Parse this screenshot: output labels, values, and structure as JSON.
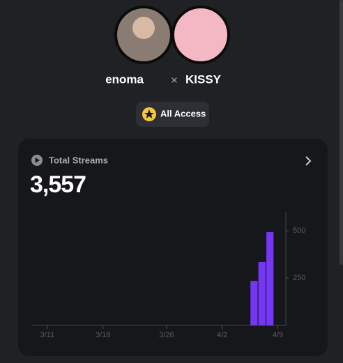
{
  "header": {
    "artist": "enoma",
    "separator": "×",
    "collaborator": "KISSY",
    "badge": "All Access"
  },
  "card": {
    "title": "Total Streams",
    "total": "3,557"
  },
  "chart_data": {
    "type": "bar",
    "x": [
      "4/6",
      "4/7",
      "4/8"
    ],
    "values": [
      235,
      335,
      493
    ],
    "color": "#7437f5",
    "xlim": [
      "3/9",
      "4/10"
    ],
    "xticks": [
      "3/11",
      "3/18",
      "3/26",
      "4/2",
      "4/9"
    ],
    "ylim": [
      0,
      600
    ],
    "yticks": [
      250,
      500
    ],
    "y_axis_side": "right"
  }
}
